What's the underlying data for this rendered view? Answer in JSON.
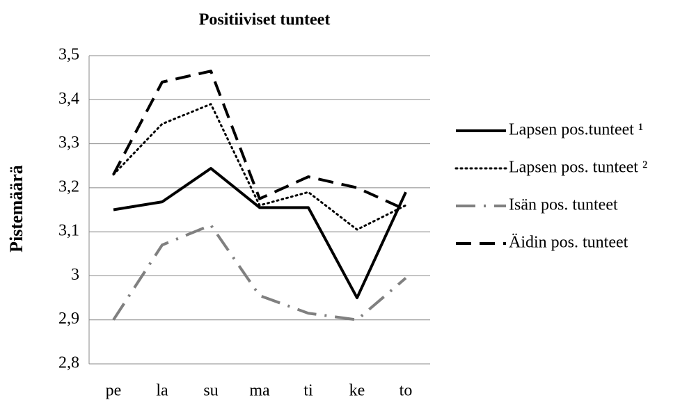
{
  "chart_data": {
    "type": "line",
    "title": "Positiiviset tunteet",
    "y_label": "Pistemäärä",
    "categories": [
      "pe",
      "la",
      "su",
      "ma",
      "ti",
      "ke",
      "to"
    ],
    "series": [
      {
        "name": "Lapsen pos.tunteet ¹",
        "color": "#000000",
        "dash": "solid",
        "values": [
          3.15,
          3.168,
          3.244,
          3.155,
          3.155,
          2.95,
          3.19
        ]
      },
      {
        "name": "Lapsen pos. tunteet ²",
        "color": "#000000",
        "dash": "dotted",
        "values": [
          3.23,
          3.345,
          3.39,
          3.16,
          3.19,
          3.105,
          3.16
        ]
      },
      {
        "name": "Isän pos. tunteet",
        "color": "#808080",
        "dash": "dashdot",
        "values": [
          2.9,
          3.07,
          3.115,
          2.955,
          2.915,
          2.9,
          2.995
        ]
      },
      {
        "name": "Äidin pos. tunteet",
        "color": "#000000",
        "dash": "dashed",
        "values": [
          3.23,
          3.44,
          3.465,
          3.175,
          3.225,
          3.2,
          3.15
        ]
      }
    ],
    "ylim": [
      2.8,
      3.5
    ],
    "yticks": [
      {
        "value": 2.8,
        "label": "2,8"
      },
      {
        "value": 2.9,
        "label": "2,9"
      },
      3,
      {
        "value": 3.1,
        "label": "3,1"
      },
      {
        "value": 3.2,
        "label": "3,2"
      },
      {
        "value": 3.3,
        "label": "3,3"
      },
      {
        "value": 3.4,
        "label": "3,4"
      },
      {
        "value": 3.5,
        "label": "3,5"
      }
    ],
    "grid": true,
    "legend": "right"
  }
}
